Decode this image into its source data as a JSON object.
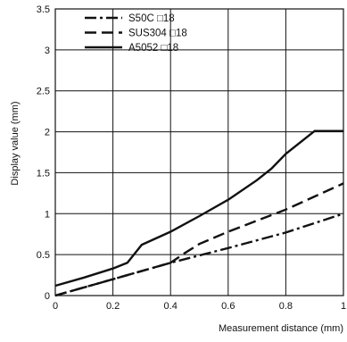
{
  "chart_data": {
    "type": "line",
    "title": "",
    "xlabel": "Measurement distance (mm)",
    "ylabel": "Display value (mm)",
    "xlim": [
      0,
      1
    ],
    "ylim": [
      0,
      3.5
    ],
    "x_ticks": [
      0,
      0.2,
      0.4,
      0.6,
      0.8,
      1
    ],
    "x_tick_labels": [
      "0",
      "0.2",
      "0.4",
      "0.6",
      "0.8",
      "1"
    ],
    "y_ticks": [
      0,
      0.5,
      1,
      1.5,
      2,
      2.5,
      3,
      3.5
    ],
    "y_tick_labels": [
      "0",
      "0.5",
      "1",
      "1.5",
      "2",
      "2.5",
      "3",
      "3.5"
    ],
    "grid": true,
    "legend_position": "top-left",
    "series": [
      {
        "name": "S50C □18",
        "line_style": "dash-dot",
        "color": "#111111",
        "x": [
          0,
          0.2,
          0.4,
          0.6,
          0.8,
          1.0
        ],
        "y": [
          0,
          0.2,
          0.4,
          0.58,
          0.77,
          1.0
        ]
      },
      {
        "name": "SUS304 □18",
        "line_style": "dashed",
        "color": "#111111",
        "x": [
          0,
          0.2,
          0.4,
          0.45,
          0.5,
          0.6,
          0.8,
          1.0
        ],
        "y": [
          0,
          0.2,
          0.4,
          0.52,
          0.63,
          0.78,
          1.05,
          1.37
        ]
      },
      {
        "name": "A5052 □18",
        "line_style": "solid",
        "color": "#111111",
        "x": [
          0,
          0.1,
          0.2,
          0.25,
          0.3,
          0.4,
          0.5,
          0.6,
          0.7,
          0.75,
          0.8,
          0.9,
          1.0
        ],
        "y": [
          0.12,
          0.22,
          0.33,
          0.4,
          0.62,
          0.78,
          0.97,
          1.17,
          1.41,
          1.55,
          1.73,
          2.01,
          2.01
        ]
      }
    ]
  }
}
